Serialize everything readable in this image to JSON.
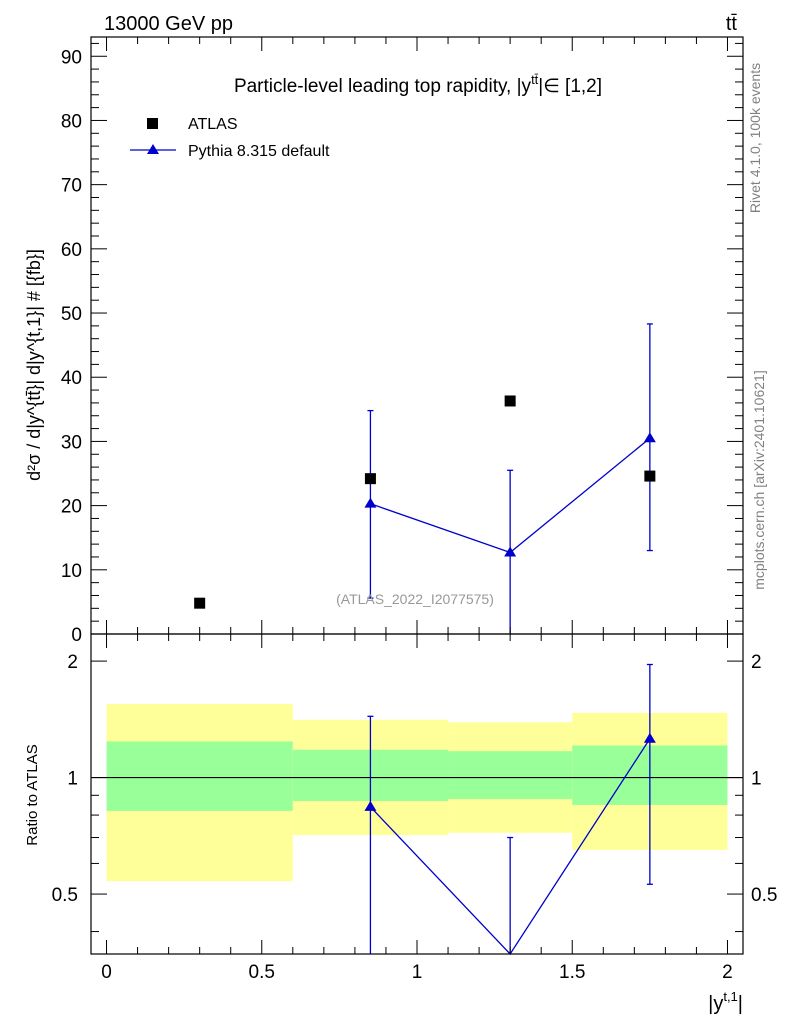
{
  "header": {
    "left": "13000 GeV pp",
    "right": "tt̄"
  },
  "side_texts": {
    "rivet": "Rivet 4.1.0,  100k events",
    "mcplots": "mcplots.cern.ch [arXiv:2401.10621]"
  },
  "watermark": "(ATLAS_2022_I2077575)",
  "colors": {
    "data": "#000000",
    "mc": "#0000cc",
    "band_inner": "#99ff99",
    "band_outer": "#ffff99"
  },
  "chart_data": {
    "type": "scatter",
    "title": "Particle-level leading top rapidity, |y^tt̄| ∈ [1,2]",
    "title_parts": {
      "prefix": "Particle-level leading top rapidity, |y",
      "sup": "tt̄",
      "suffix": "|∈ [1,2]"
    },
    "xlabel": "|y^{t,1}|",
    "ylabel": "d²σ / d|y^{tt̄}| d|y^{t,1}| # [{fb}]",
    "xlim": [
      -0.05,
      2.05
    ],
    "ylim": [
      0,
      93
    ],
    "x_ticks": [
      "0",
      "0.5",
      "1",
      "1.5",
      "2"
    ],
    "x_tick_values": [
      0,
      0.5,
      1,
      1.5,
      2
    ],
    "y_ticks": [
      "0",
      "10",
      "20",
      "30",
      "40",
      "50",
      "60",
      "70",
      "80",
      "90"
    ],
    "y_tick_values": [
      0,
      10,
      20,
      30,
      40,
      50,
      60,
      70,
      80,
      90
    ],
    "legend": [
      {
        "name": "ATLAS",
        "marker": "square"
      },
      {
        "name": "Pythia 8.315 default",
        "marker": "triangle"
      }
    ],
    "bins": [
      {
        "lo": 0.0,
        "hi": 0.6
      },
      {
        "lo": 0.6,
        "hi": 1.1
      },
      {
        "lo": 1.1,
        "hi": 1.5
      },
      {
        "lo": 1.5,
        "hi": 2.0
      }
    ],
    "series": [
      {
        "name": "ATLAS",
        "x": [
          0.3,
          0.85,
          1.3,
          1.75
        ],
        "y": [
          4.8,
          24.2,
          36.3,
          24.6
        ]
      },
      {
        "name": "Pythia 8.315 default",
        "x": [
          0.85,
          1.3,
          1.75
        ],
        "y": [
          20.3,
          12.7,
          30.5
        ],
        "err_lo": [
          14.7,
          13.5,
          17.5
        ],
        "err_hi": [
          14.5,
          12.8,
          17.8
        ]
      }
    ],
    "ratio": {
      "ylabel": "Ratio to ATLAS",
      "ylim": [
        0.35,
        2.35
      ],
      "y_ticks": [
        "0.5",
        "1",
        "2"
      ],
      "y_tick_values": [
        0.5,
        1,
        2
      ],
      "band_inner": [
        [
          0.82,
          1.24
        ],
        [
          0.87,
          1.18
        ],
        [
          0.88,
          1.17
        ],
        [
          0.85,
          1.21
        ]
      ],
      "band_outer": [
        [
          0.54,
          1.55
        ],
        [
          0.71,
          1.41
        ],
        [
          0.72,
          1.39
        ],
        [
          0.65,
          1.47
        ]
      ],
      "mc_x": [
        0.85,
        1.3,
        1.75
      ],
      "mc_y": [
        0.84,
        0.35,
        1.26
      ],
      "mc_err_lo": [
        0.6,
        0.35,
        0.73
      ],
      "mc_err_hi": [
        0.6,
        0.35,
        0.7
      ]
    }
  }
}
